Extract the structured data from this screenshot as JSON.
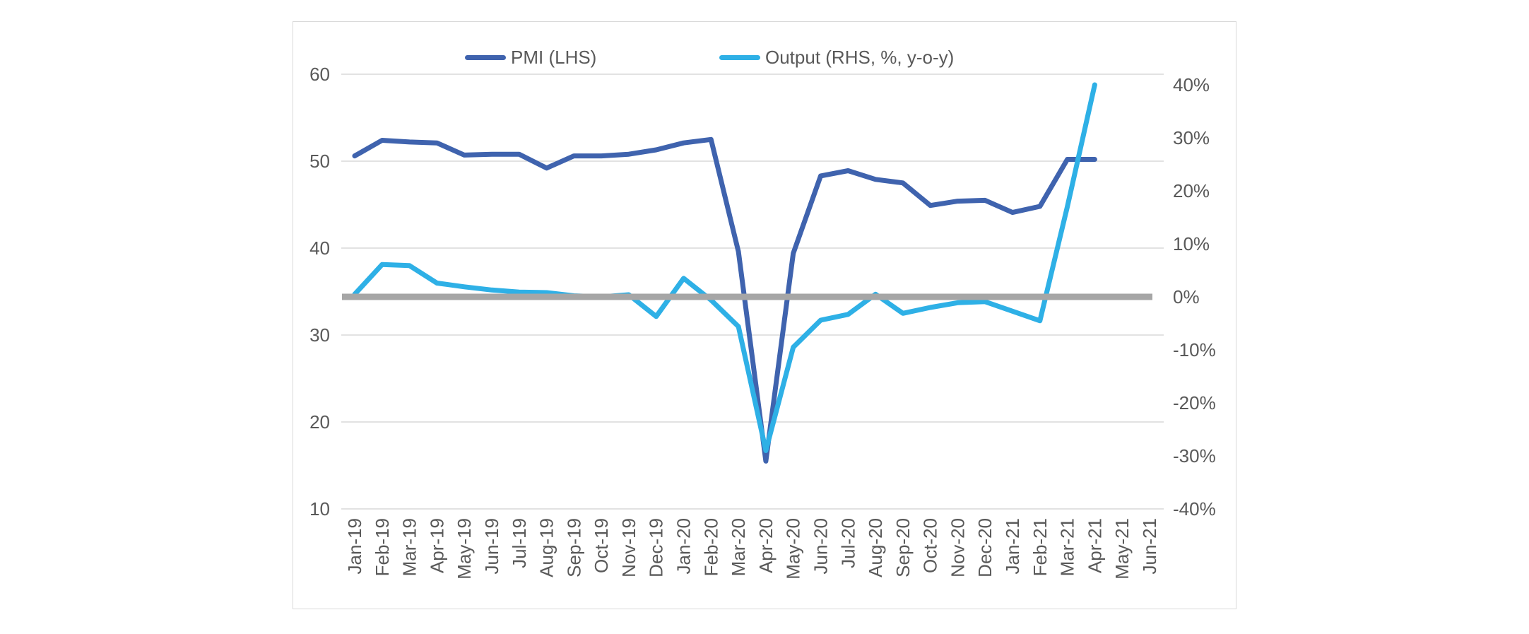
{
  "chart": {
    "legend": {
      "items": [
        {
          "id": "pmi",
          "label": "PMI (LHS)",
          "color": "#3F63AE"
        },
        {
          "id": "output",
          "label": "Output (RHS, %, y-o-y)",
          "color": "#2EB0E6"
        }
      ],
      "position": "top"
    },
    "colors": {
      "grid": "#D9D9D9",
      "frame_border": "#D9D9D9",
      "text": "#595959",
      "background": "#FFFFFF",
      "zero_line": "#A6A6A6"
    }
  },
  "chart_data": {
    "type": "line",
    "title": "",
    "xlabel": "",
    "ylabel_left": "",
    "ylabel_right": "",
    "grid": true,
    "legend_position": "top",
    "categories": [
      "Jan-19",
      "Feb-19",
      "Mar-19",
      "Apr-19",
      "May-19",
      "Jun-19",
      "Jul-19",
      "Aug-19",
      "Sep-19",
      "Oct-19",
      "Nov-19",
      "Dec-19",
      "Jan-20",
      "Feb-20",
      "Mar-20",
      "Apr-20",
      "May-20",
      "Jun-20",
      "Jul-20",
      "Aug-20",
      "Sep-20",
      "Oct-20",
      "Nov-20",
      "Dec-20",
      "Jan-21",
      "Feb-21",
      "Mar-21",
      "Apr-21",
      "May-21",
      "Jun-21"
    ],
    "series": [
      {
        "name": "PMI (LHS)",
        "axis": "left",
        "color": "#3F63AE",
        "values": [
          50.6,
          52.4,
          52.2,
          52.1,
          50.7,
          50.8,
          50.8,
          49.2,
          50.6,
          50.6,
          50.8,
          51.3,
          52.1,
          52.5,
          39.6,
          15.5,
          39.4,
          48.3,
          48.9,
          47.9,
          47.5,
          44.9,
          45.4,
          45.5,
          44.1,
          44.8,
          50.2,
          50.2,
          null,
          null
        ]
      },
      {
        "name": "Output (RHS, %, y-o-y)",
        "axis": "right",
        "color": "#2EB0E6",
        "values": [
          0.5,
          6.1,
          5.9,
          2.6,
          1.9,
          1.3,
          0.9,
          0.8,
          0.2,
          0.0,
          0.4,
          -3.7,
          3.5,
          -0.6,
          -5.6,
          -29.0,
          -9.5,
          -4.4,
          -3.3,
          0.5,
          -3.1,
          -2.0,
          -1.1,
          -0.9,
          -2.7,
          -4.5,
          17.0,
          40.0,
          null,
          null
        ]
      },
      {
        "name": "zero baseline",
        "axis": "right",
        "color": "#A6A6A6",
        "constant": 0
      }
    ],
    "left_axis": {
      "min": 10,
      "max": 60,
      "ticks": [
        60,
        50,
        40,
        30,
        20,
        10
      ]
    },
    "right_axis": {
      "min": -40,
      "max": 42,
      "ticks": [
        40,
        30,
        20,
        10,
        0,
        -10,
        -20,
        -30,
        -40
      ],
      "tick_format": "percent"
    }
  }
}
